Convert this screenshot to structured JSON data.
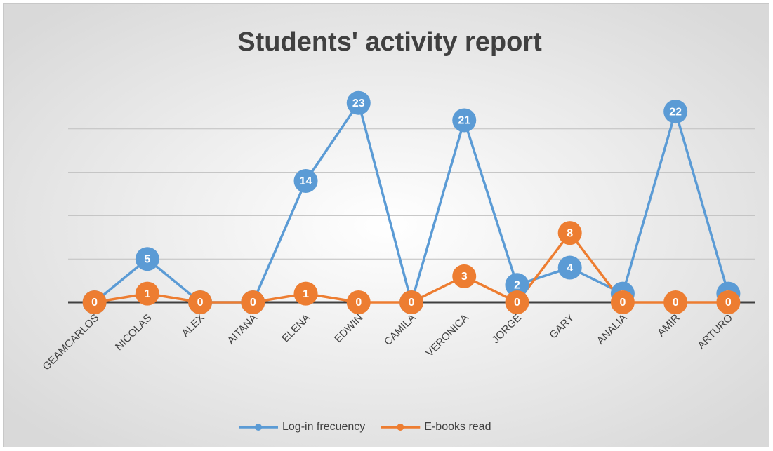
{
  "chart_data": {
    "type": "line",
    "title": "Students' activity report",
    "categories": [
      "GEAMCARLOS",
      "NICOLAS",
      "ALEX",
      "AITANA",
      "ELENA",
      "EDWIN",
      "CAMILA",
      "VERONICA",
      "JORGE",
      "GARY",
      "ANALIA",
      "AMIR",
      "ARTURO"
    ],
    "series": [
      {
        "name": "Log-in frecuency",
        "color": "#5b9bd5",
        "values": [
          0,
          5,
          0,
          0,
          14,
          23,
          0,
          21,
          2,
          4,
          1,
          22,
          1
        ]
      },
      {
        "name": "E-books read",
        "color": "#ed7d31",
        "values": [
          0,
          1,
          0,
          0,
          1,
          0,
          0,
          3,
          0,
          8,
          0,
          0,
          0
        ]
      }
    ],
    "ylim": [
      0,
      25
    ],
    "yticks": [
      0,
      5,
      10,
      15,
      20
    ],
    "grid": true,
    "legend": "bottom"
  }
}
